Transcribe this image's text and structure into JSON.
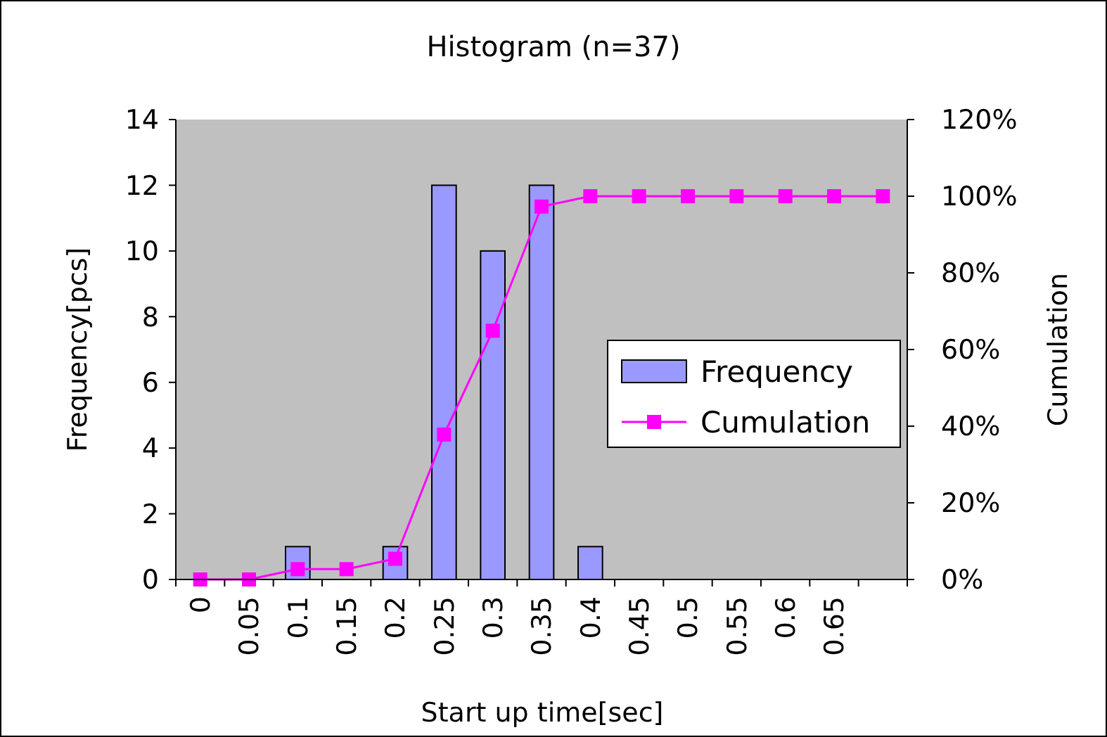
{
  "chart_data": {
    "type": "bar",
    "title": "Histogram (n=37)",
    "xlabel": "Start up time[sec]",
    "ylabel": "Frequency[pcs]",
    "y2label": "Cumulation",
    "categories": [
      "0",
      "0.05",
      "0.1",
      "0.15",
      "0.2",
      "0.25",
      "0.3",
      "0.35",
      "0.4",
      "0.45",
      "0.5",
      "0.55",
      "0.6",
      "0.65",
      null
    ],
    "series": [
      {
        "name": "Frequency",
        "color": "#9999ff",
        "values": [
          0,
          0,
          1,
          0,
          1,
          12,
          10,
          12,
          1,
          0,
          0,
          0,
          0,
          0,
          0
        ]
      },
      {
        "name": "Cumulation",
        "type": "line",
        "axis": "y2",
        "color": "#ff00ff",
        "marker": "square",
        "values": [
          0,
          0,
          2.7,
          2.7,
          5.4,
          37.8,
          64.9,
          97.3,
          100,
          100,
          100,
          100,
          100,
          100,
          100
        ]
      }
    ],
    "ylim": [
      0,
      14
    ],
    "yticks": [
      0,
      2,
      4,
      6,
      8,
      10,
      12,
      14
    ],
    "y2lim": [
      0,
      120
    ],
    "y2ticks": [
      {
        "value": 0,
        "label": "0%"
      },
      {
        "value": 20,
        "label": "20%"
      },
      {
        "value": 40,
        "label": "40%"
      },
      {
        "value": 60,
        "label": "60%"
      },
      {
        "value": 80,
        "label": "80%"
      },
      {
        "value": 100,
        "label": "100%"
      },
      {
        "value": 120,
        "label": "120%"
      }
    ],
    "grid": false,
    "legend": "right"
  }
}
